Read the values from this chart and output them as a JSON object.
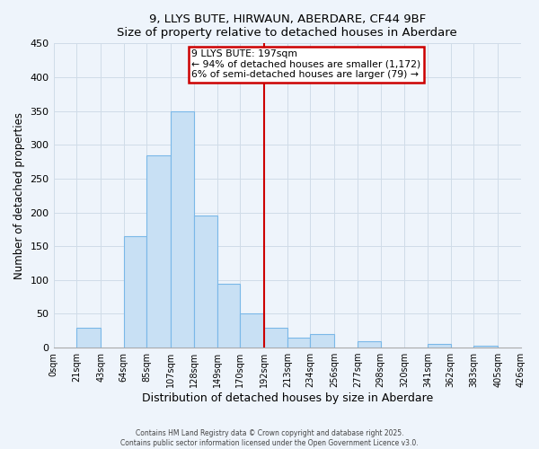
{
  "title": "9, LLYS BUTE, HIRWAUN, ABERDARE, CF44 9BF",
  "subtitle": "Size of property relative to detached houses in Aberdare",
  "xlabel": "Distribution of detached houses by size in Aberdare",
  "ylabel": "Number of detached properties",
  "bin_edges": [
    0,
    21,
    43,
    64,
    85,
    107,
    128,
    149,
    170,
    192,
    213,
    234,
    256,
    277,
    298,
    320,
    341,
    362,
    383,
    405,
    426
  ],
  "bin_labels": [
    "0sqm",
    "21sqm",
    "43sqm",
    "64sqm",
    "85sqm",
    "107sqm",
    "128sqm",
    "149sqm",
    "170sqm",
    "192sqm",
    "213sqm",
    "234sqm",
    "256sqm",
    "277sqm",
    "298sqm",
    "320sqm",
    "341sqm",
    "362sqm",
    "383sqm",
    "405sqm",
    "426sqm"
  ],
  "counts": [
    0,
    30,
    0,
    165,
    285,
    350,
    195,
    95,
    50,
    30,
    15,
    20,
    0,
    10,
    0,
    0,
    5,
    0,
    3,
    0
  ],
  "bar_color": "#c8e0f4",
  "bar_edge_color": "#7ab8e8",
  "vline_x": 192,
  "vline_color": "#cc0000",
  "annotation_title": "9 LLYS BUTE: 197sqm",
  "annotation_line1": "← 94% of detached houses are smaller (1,172)",
  "annotation_line2": "6% of semi-detached houses are larger (79) →",
  "annotation_box_color": "#cc0000",
  "ylim": [
    0,
    450
  ],
  "yticks": [
    0,
    50,
    100,
    150,
    200,
    250,
    300,
    350,
    400,
    450
  ],
  "footer1": "Contains HM Land Registry data © Crown copyright and database right 2025.",
  "footer2": "Contains public sector information licensed under the Open Government Licence v3.0.",
  "bg_color": "#eef4fb",
  "grid_color": "#d0dce8"
}
